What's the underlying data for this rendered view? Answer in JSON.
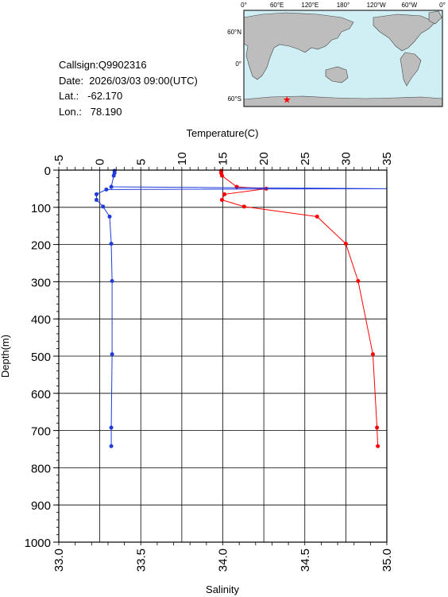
{
  "info": {
    "callsign": "Callsign:Q9902316",
    "date": "Date:  2026/03/03 09:00(UTC)",
    "lat": "Lat.:   -62.170",
    "lon": "Lon.:   78.190"
  },
  "map": {
    "top_labels": [
      "0°",
      "60°E",
      "120°E",
      "180°",
      "120°W",
      "60°W",
      "0°"
    ],
    "left_labels": [
      "60°N",
      "0°",
      "60°S"
    ],
    "ocean_color": "#cfeff5",
    "land_color": "#bdbdbd",
    "marker_color": "#ff0000",
    "marker_lon": 78.19,
    "marker_lat": -62.17
  },
  "chart_data": {
    "type": "line",
    "xlabel_top": "Temperature(C)",
    "xlabel_bottom": "Salinity",
    "ylabel": "Depth(m)",
    "temperature_ticks": [
      "-5",
      "0",
      "5",
      "10",
      "15",
      "20",
      "25",
      "30",
      "35"
    ],
    "salinity_ticks": [
      "33.0",
      "33.5",
      "34.0",
      "34.5",
      "35.0"
    ],
    "depth_ticks": [
      "0",
      "100",
      "200",
      "300",
      "400",
      "500",
      "600",
      "700",
      "800",
      "900",
      "1000"
    ],
    "temperature_range": [
      -5,
      35
    ],
    "salinity_range": [
      33.0,
      35.0
    ],
    "depth_range": [
      0,
      1000
    ],
    "grid": true,
    "series": [
      {
        "color": "#ff0000",
        "axis": "temperature",
        "points": [
          [
            14.8,
            2
          ],
          [
            14.8,
            8
          ],
          [
            14.9,
            15
          ],
          [
            16.7,
            45
          ],
          [
            20.3,
            50
          ],
          [
            15.2,
            65
          ],
          [
            14.9,
            80
          ],
          [
            17.6,
            98
          ],
          [
            26.5,
            125
          ],
          [
            30.0,
            198
          ],
          [
            31.5,
            298
          ],
          [
            33.3,
            495
          ],
          [
            33.8,
            692
          ],
          [
            33.9,
            742
          ]
        ]
      },
      {
        "color": "#1f3bdb",
        "axis": "salinity",
        "points": [
          [
            33.34,
            2
          ],
          [
            33.34,
            8
          ],
          [
            33.335,
            15
          ],
          [
            33.32,
            45
          ],
          [
            35.0,
            50
          ],
          [
            33.29,
            52
          ],
          [
            33.23,
            65
          ],
          [
            33.23,
            80
          ],
          [
            33.27,
            98
          ],
          [
            33.31,
            125
          ],
          [
            33.32,
            198
          ],
          [
            33.325,
            298
          ],
          [
            33.325,
            495
          ],
          [
            33.32,
            692
          ],
          [
            33.32,
            742
          ]
        ]
      }
    ]
  }
}
